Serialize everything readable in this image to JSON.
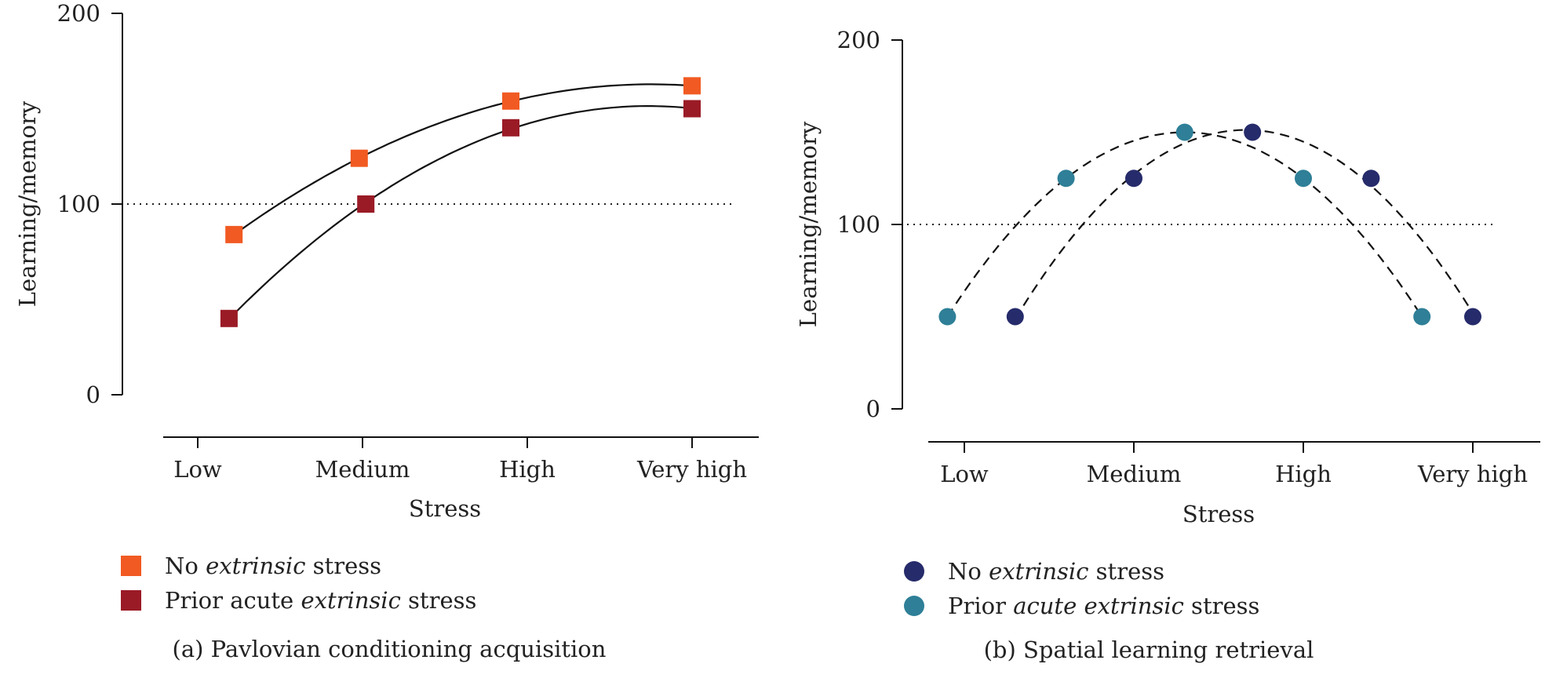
{
  "colors": {
    "axis": "#111111",
    "fit_line": "#111111",
    "reference_line": "#222222",
    "no_extrinsic_square": "#F15A22",
    "prior_acute_square": "#9A1B26",
    "no_extrinsic_circle": "#262B6B",
    "prior_acute_circle": "#2E7F97"
  },
  "chart_data": [
    {
      "type": "scatter",
      "panel": "a",
      "caption": "(a) Pavlovian conditioning acquisition",
      "xlabel": "Stress",
      "ylabel": "Learning/memory",
      "categories": [
        "Low",
        "Medium",
        "High",
        "Very high"
      ],
      "x_range": [
        0,
        3
      ],
      "ylim": [
        0,
        200
      ],
      "yticks": [
        "0",
        "100",
        "200"
      ],
      "reference_line_y": 100,
      "marker": "square",
      "fit": "solid",
      "legend": [
        {
          "label_parts": [
            {
              "text": "No ",
              "italic": false
            },
            {
              "text": "extrinsic",
              "italic": true
            },
            {
              "text": " stress",
              "italic": false
            }
          ],
          "color": "#F15A22"
        },
        {
          "label_parts": [
            {
              "text": "Prior acute ",
              "italic": false
            },
            {
              "text": "extrinsic",
              "italic": true
            },
            {
              "text": " stress",
              "italic": false
            }
          ],
          "color": "#9A1B26"
        }
      ],
      "series": [
        {
          "color": "#F15A22",
          "x": [
            0.22,
            0.98,
            1.9,
            3.0
          ],
          "y": [
            84,
            124,
            154,
            162
          ]
        },
        {
          "color": "#9A1B26",
          "x": [
            0.19,
            1.02,
            1.9,
            3.0
          ],
          "y": [
            40,
            100,
            140,
            150
          ]
        }
      ]
    },
    {
      "type": "scatter",
      "panel": "b",
      "caption": "(b) Spatial learning retrieval",
      "xlabel": "Stress",
      "ylabel": "Learning/memory",
      "categories": [
        "Low",
        "Medium",
        "High",
        "Very high"
      ],
      "x_range": [
        0,
        3
      ],
      "ylim": [
        0,
        200
      ],
      "yticks": [
        "0",
        "100",
        "200"
      ],
      "reference_line_y": 100,
      "marker": "circle",
      "fit": "dashed",
      "legend": [
        {
          "label_parts": [
            {
              "text": "No ",
              "italic": false
            },
            {
              "text": "extrinsic",
              "italic": true
            },
            {
              "text": " stress",
              "italic": false
            }
          ],
          "color": "#262B6B"
        },
        {
          "label_parts": [
            {
              "text": "Prior ",
              "italic": false
            },
            {
              "text": "acute extrinsic",
              "italic": true
            },
            {
              "text": " stress",
              "italic": false
            }
          ],
          "color": "#2E7F97"
        }
      ],
      "series": [
        {
          "color": "#262B6B",
          "x": [
            0.3,
            1.0,
            1.7,
            2.4,
            3.0
          ],
          "y": [
            50,
            125,
            150,
            125,
            50
          ]
        },
        {
          "color": "#2E7F97",
          "x": [
            -0.1,
            0.6,
            1.3,
            2.0,
            2.7
          ],
          "y": [
            50,
            125,
            150,
            125,
            50
          ]
        }
      ]
    }
  ]
}
